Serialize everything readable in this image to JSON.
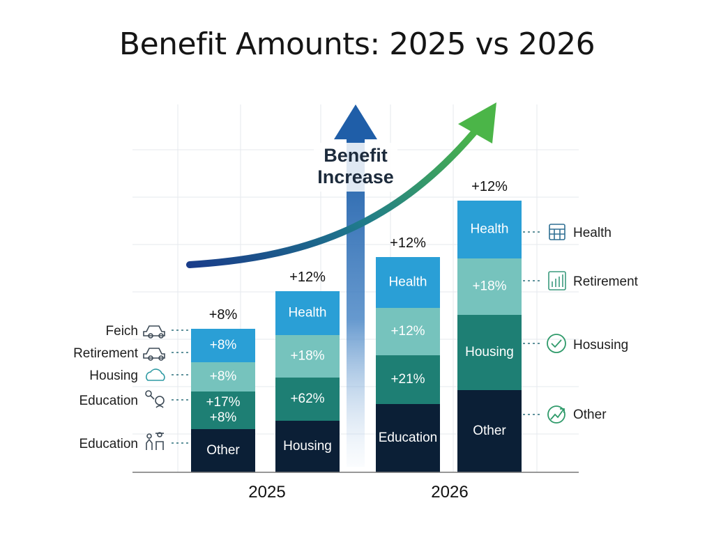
{
  "title": "Benefit Amounts: 2025 vs 2026",
  "arrow_label": [
    "Benefit",
    "Increase"
  ],
  "colors": {
    "light_blue": "#2a9fd6",
    "mint": "#76c3bd",
    "teal": "#1e7f74",
    "navy": "#0b1f36"
  },
  "chart_data": {
    "type": "bar",
    "stacked": true,
    "x_labels": [
      "2025",
      "2026"
    ],
    "bars": [
      {
        "group": "2025",
        "top_label": "+8%",
        "segments": [
          {
            "label": "Other",
            "color": "navy"
          },
          {
            "label": "+17%\n+8%",
            "color": "teal"
          },
          {
            "label": "+8%",
            "color": "mint"
          },
          {
            "label": "+8%",
            "color": "light_blue"
          }
        ]
      },
      {
        "group": "2025",
        "top_label": "+12%",
        "segments": [
          {
            "label": "Housing",
            "color": "navy"
          },
          {
            "label": "+62%",
            "color": "teal"
          },
          {
            "label": "+18%",
            "color": "mint"
          },
          {
            "label": "Health",
            "color": "light_blue"
          }
        ]
      },
      {
        "group": "2026",
        "top_label": "+12%",
        "segments": [
          {
            "label": "Education",
            "color": "navy"
          },
          {
            "label": "+21%",
            "color": "teal"
          },
          {
            "label": "+12%",
            "color": "mint"
          },
          {
            "label": "Health",
            "color": "light_blue"
          }
        ]
      },
      {
        "group": "2026",
        "top_label": "+12%",
        "segments": [
          {
            "label": "Other",
            "color": "navy"
          },
          {
            "label": "Housing",
            "color": "teal"
          },
          {
            "label": "+18%",
            "color": "mint"
          },
          {
            "label": "Health",
            "color": "light_blue"
          }
        ]
      }
    ],
    "left_legend": [
      {
        "label": "Feich",
        "icon": "car-icon"
      },
      {
        "label": "Retirement",
        "icon": "car-icon"
      },
      {
        "label": "Housing",
        "icon": "cloud-icon"
      },
      {
        "label": "Education",
        "icon": "person-icon"
      },
      {
        "label": "Education",
        "icon": "people-icon"
      }
    ],
    "right_legend": [
      {
        "label": "Health",
        "icon": "calendar-icon"
      },
      {
        "label": "Retirement",
        "icon": "bar-chart-icon"
      },
      {
        "label": "Hosusing",
        "icon": "check-circle-icon"
      },
      {
        "label": "Other",
        "icon": "growth-icon"
      }
    ]
  }
}
